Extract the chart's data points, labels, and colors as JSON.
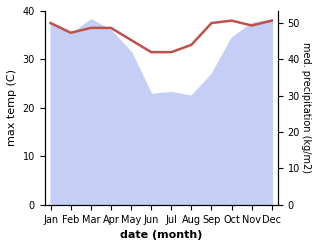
{
  "months": [
    "Jan",
    "Feb",
    "Mar",
    "Apr",
    "May",
    "Jun",
    "Jul",
    "Aug",
    "Sep",
    "Oct",
    "Nov",
    "Dec"
  ],
  "x": [
    0,
    1,
    2,
    3,
    4,
    5,
    6,
    7,
    8,
    9,
    10,
    11
  ],
  "temperature": [
    37.5,
    35.5,
    36.5,
    36.5,
    34.0,
    31.5,
    31.5,
    33.0,
    37.5,
    38.0,
    37.0,
    38.0
  ],
  "precipitation": [
    50.0,
    47.0,
    51.0,
    48.0,
    42.0,
    30.5,
    31.0,
    30.0,
    36.0,
    46.0,
    50.0,
    51.0
  ],
  "temp_color": "#c0504d",
  "precip_fill_color": "#c5cff5",
  "ylabel_left": "max temp (C)",
  "ylabel_right": "med. precipitation (kg/m2)",
  "xlabel": "date (month)",
  "ylim_left": [
    0,
    40
  ],
  "ylim_right": [
    0,
    53.33
  ],
  "yticks_left": [
    0,
    10,
    20,
    30,
    40
  ],
  "yticks_right": [
    0,
    10,
    20,
    30,
    40,
    50
  ],
  "background_color": "#ffffff",
  "temp_linewidth": 1.8,
  "figsize": [
    3.18,
    2.47
  ],
  "dpi": 100
}
